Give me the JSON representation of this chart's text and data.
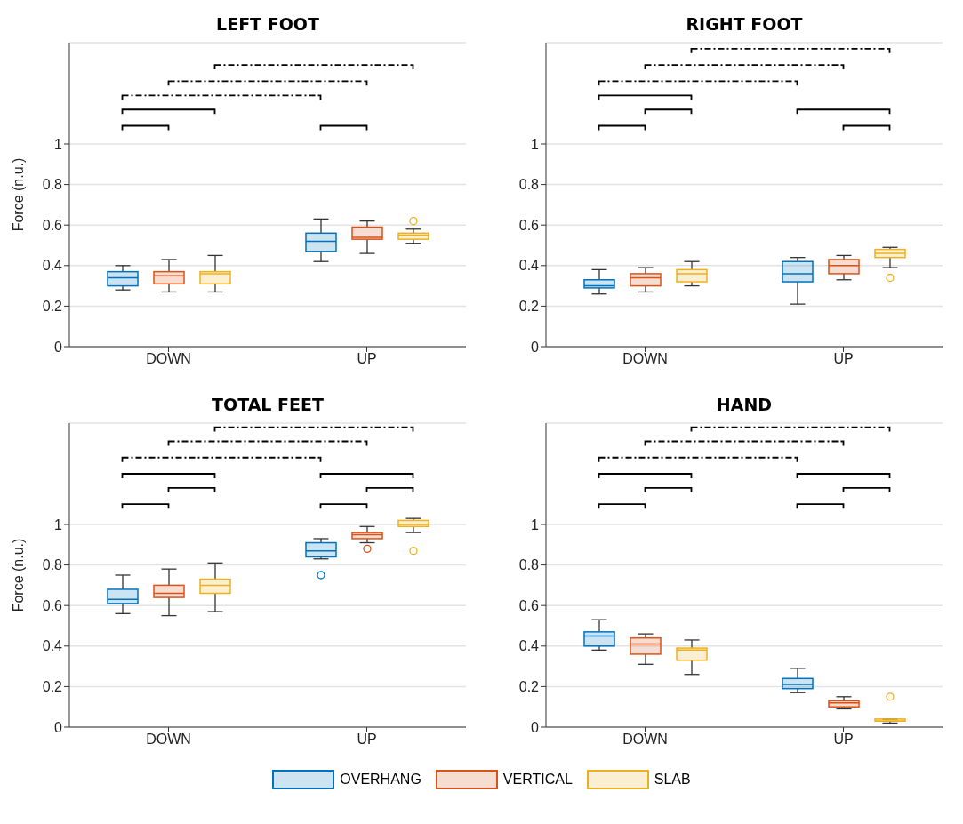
{
  "chart_data": [
    {
      "type": "box",
      "title": "LEFT FOOT",
      "ylabel": "Force (n.u.)",
      "categories": [
        "DOWN",
        "UP"
      ],
      "ylim": [
        0,
        1.5
      ],
      "yticks": [
        0,
        0.2,
        0.4,
        0.6,
        0.8,
        1
      ],
      "grid": "y",
      "legend": "bottom",
      "series": [
        {
          "name": "OVERHANG",
          "color": "#0072bd",
          "boxes": [
            {
              "low": 0.28,
              "q1": 0.3,
              "median": 0.34,
              "q3": 0.37,
              "high": 0.4
            },
            {
              "low": 0.42,
              "q1": 0.47,
              "median": 0.52,
              "q3": 0.56,
              "high": 0.63
            }
          ]
        },
        {
          "name": "VERTICAL",
          "color": "#d95319",
          "boxes": [
            {
              "low": 0.27,
              "q1": 0.31,
              "median": 0.35,
              "q3": 0.37,
              "high": 0.43
            },
            {
              "low": 0.46,
              "q1": 0.53,
              "median": 0.54,
              "q3": 0.59,
              "high": 0.62
            }
          ]
        },
        {
          "name": "SLAB",
          "color": "#edb120",
          "boxes": [
            {
              "low": 0.27,
              "q1": 0.31,
              "median": 0.36,
              "q3": 0.37,
              "high": 0.45
            },
            {
              "low": 0.51,
              "q1": 0.53,
              "median": 0.55,
              "q3": 0.56,
              "high": 0.58,
              "outliers": [
                0.62
              ]
            }
          ]
        }
      ]
    },
    {
      "type": "box",
      "title": "RIGHT FOOT",
      "categories": [
        "DOWN",
        "UP"
      ],
      "ylim": [
        0,
        1.5
      ],
      "yticks": [
        0,
        0.2,
        0.4,
        0.6,
        0.8,
        1
      ],
      "grid": "y",
      "series": [
        {
          "color": "#0072bd",
          "boxes": [
            {
              "low": 0.26,
              "q1": 0.29,
              "median": 0.3,
              "q3": 0.33,
              "high": 0.38
            },
            {
              "low": 0.21,
              "q1": 0.32,
              "median": 0.36,
              "q3": 0.42,
              "high": 0.44
            }
          ]
        },
        {
          "color": "#d95319",
          "boxes": [
            {
              "low": 0.27,
              "q1": 0.3,
              "median": 0.34,
              "q3": 0.36,
              "high": 0.39
            },
            {
              "low": 0.33,
              "q1": 0.36,
              "median": 0.4,
              "q3": 0.43,
              "high": 0.45
            }
          ]
        },
        {
          "color": "#edb120",
          "boxes": [
            {
              "low": 0.3,
              "q1": 0.32,
              "median": 0.36,
              "q3": 0.38,
              "high": 0.42
            },
            {
              "low": 0.39,
              "q1": 0.44,
              "median": 0.46,
              "q3": 0.48,
              "high": 0.49,
              "outliers": [
                0.34
              ]
            }
          ]
        }
      ]
    },
    {
      "type": "box",
      "title": "TOTAL FEET",
      "ylabel": "Force (n.u.)",
      "categories": [
        "DOWN",
        "UP"
      ],
      "ylim": [
        0,
        1.5
      ],
      "yticks": [
        0,
        0.2,
        0.4,
        0.6,
        0.8,
        1
      ],
      "grid": "y",
      "series": [
        {
          "color": "#0072bd",
          "boxes": [
            {
              "low": 0.56,
              "q1": 0.61,
              "median": 0.63,
              "q3": 0.68,
              "high": 0.75
            },
            {
              "low": 0.83,
              "q1": 0.84,
              "median": 0.87,
              "q3": 0.91,
              "high": 0.93,
              "outliers": [
                0.75
              ]
            }
          ]
        },
        {
          "color": "#d95319",
          "boxes": [
            {
              "low": 0.55,
              "q1": 0.64,
              "median": 0.66,
              "q3": 0.7,
              "high": 0.78
            },
            {
              "low": 0.91,
              "q1": 0.93,
              "median": 0.95,
              "q3": 0.96,
              "high": 0.99,
              "outliers": [
                0.88
              ]
            }
          ]
        },
        {
          "color": "#edb120",
          "boxes": [
            {
              "low": 0.57,
              "q1": 0.66,
              "median": 0.7,
              "q3": 0.73,
              "high": 0.81
            },
            {
              "low": 0.96,
              "q1": 0.99,
              "median": 1,
              "q3": 1.02,
              "high": 1.03,
              "outliers": [
                0.87
              ]
            }
          ]
        }
      ]
    },
    {
      "type": "box",
      "title": "HAND",
      "categories": [
        "DOWN",
        "UP"
      ],
      "ylim": [
        0,
        1.5
      ],
      "yticks": [
        0,
        0.2,
        0.4,
        0.6,
        0.8,
        1
      ],
      "grid": "y",
      "series": [
        {
          "color": "#0072bd",
          "boxes": [
            {
              "low": 0.38,
              "q1": 0.4,
              "median": 0.45,
              "q3": 0.47,
              "high": 0.53
            },
            {
              "low": 0.17,
              "q1": 0.19,
              "median": 0.21,
              "q3": 0.24,
              "high": 0.29
            }
          ]
        },
        {
          "color": "#d95319",
          "boxes": [
            {
              "low": 0.31,
              "q1": 0.36,
              "median": 0.41,
              "q3": 0.44,
              "high": 0.46
            },
            {
              "low": 0.09,
              "q1": 0.1,
              "median": 0.12,
              "q3": 0.13,
              "high": 0.15
            }
          ]
        },
        {
          "color": "#edb120",
          "boxes": [
            {
              "low": 0.26,
              "q1": 0.33,
              "median": 0.38,
              "q3": 0.39,
              "high": 0.43
            },
            {
              "low": 0.02,
              "q1": 0.03,
              "median": 0.03,
              "q3": 0.04,
              "high": 0.04,
              "outliers": [
                0.15
              ]
            }
          ]
        }
      ]
    }
  ]
}
